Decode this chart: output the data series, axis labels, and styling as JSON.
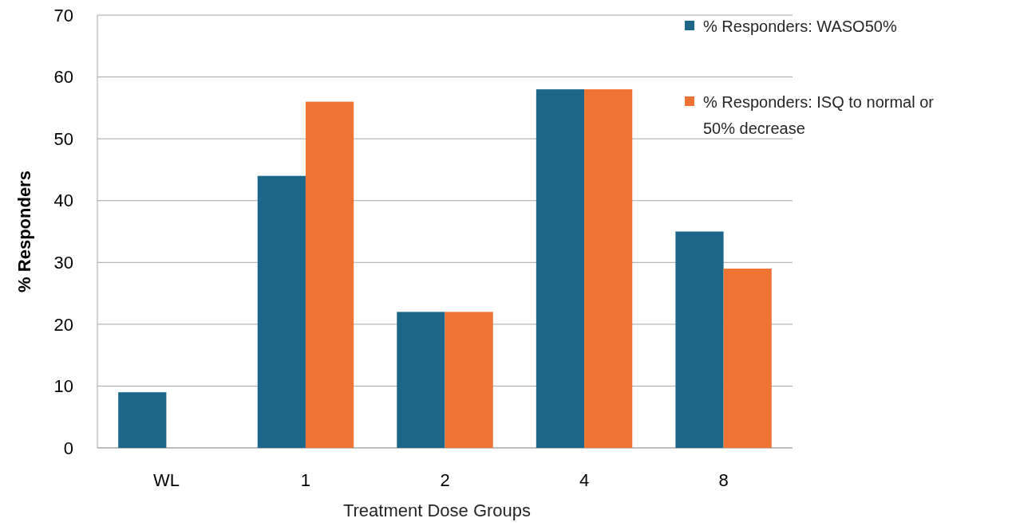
{
  "chart_data": {
    "type": "bar",
    "xlabel": "Treatment Dose Groups",
    "ylabel": "% Responders",
    "categories": [
      "WL",
      "1",
      "2",
      "4",
      "8"
    ],
    "series": [
      {
        "name": "% Responders: WASO50%",
        "color": "#1b6689",
        "values": [
          9,
          44,
          22,
          58,
          35
        ]
      },
      {
        "name": "% Responders: ISQ to normal or 50% decrease",
        "color": "#ee7434",
        "values": [
          0,
          56,
          22,
          58,
          29
        ]
      }
    ],
    "ylim": [
      0,
      70
    ],
    "yticks": [
      0,
      10,
      20,
      30,
      40,
      50,
      60,
      70
    ],
    "grid": "y",
    "legend": "top right"
  }
}
